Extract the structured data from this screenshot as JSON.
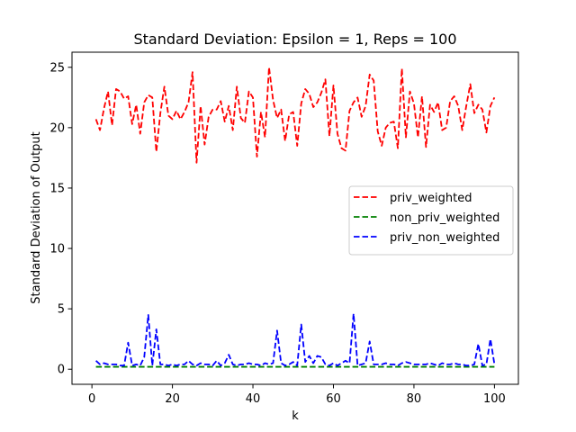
{
  "chart_data": {
    "type": "line",
    "title": "Standard Deviation: Epsilon = 1, Reps = 100",
    "xlabel": "k",
    "ylabel": "Standard Deviation of Output",
    "xlim": [
      -4.95,
      105.95
    ],
    "ylim": [
      -1.25,
      26.25
    ],
    "xticks": [
      0,
      20,
      40,
      60,
      80,
      100
    ],
    "yticks": [
      0,
      5,
      10,
      15,
      20,
      25
    ],
    "grid": false,
    "legend_position": "center-right",
    "x": [
      1,
      2,
      3,
      4,
      5,
      6,
      7,
      8,
      9,
      10,
      11,
      12,
      13,
      14,
      15,
      16,
      17,
      18,
      19,
      20,
      21,
      22,
      23,
      24,
      25,
      26,
      27,
      28,
      29,
      30,
      31,
      32,
      33,
      34,
      35,
      36,
      37,
      38,
      39,
      40,
      41,
      42,
      43,
      44,
      45,
      46,
      47,
      48,
      49,
      50,
      51,
      52,
      53,
      54,
      55,
      56,
      57,
      58,
      59,
      60,
      61,
      62,
      63,
      64,
      65,
      66,
      67,
      68,
      69,
      70,
      71,
      72,
      73,
      74,
      75,
      76,
      77,
      78,
      79,
      80,
      81,
      82,
      83,
      84,
      85,
      86,
      87,
      88,
      89,
      90,
      91,
      92,
      93,
      94,
      95,
      96,
      97,
      98,
      99,
      100
    ],
    "series": [
      {
        "name": "priv_weighted",
        "color": "#ff0000",
        "dash": "dashed",
        "values": [
          20.7,
          19.8,
          21.6,
          23.0,
          20.2,
          23.2,
          23.0,
          22.4,
          22.6,
          20.3,
          21.9,
          19.5,
          22.1,
          22.7,
          22.5,
          18.0,
          21.2,
          23.4,
          21.0,
          20.7,
          21.4,
          20.7,
          21.3,
          22.1,
          24.6,
          17.1,
          21.8,
          18.6,
          20.9,
          21.5,
          21.5,
          22.2,
          20.5,
          21.8,
          19.8,
          23.4,
          20.8,
          20.4,
          23.0,
          22.5,
          17.6,
          21.3,
          19.2,
          25.0,
          22.3,
          20.8,
          21.5,
          18.9,
          21.1,
          21.3,
          18.5,
          22.0,
          23.2,
          22.8,
          21.7,
          22.1,
          22.9,
          24.0,
          19.3,
          23.5,
          19.5,
          18.3,
          18.1,
          21.4,
          22.1,
          22.5,
          20.9,
          21.8,
          24.4,
          23.9,
          19.7,
          18.5,
          20.0,
          20.4,
          20.5,
          18.3,
          24.9,
          19.2,
          23.0,
          22.0,
          19.2,
          22.6,
          18.4,
          21.9,
          21.3,
          22.1,
          19.8,
          20.0,
          22.2,
          22.6,
          21.8,
          19.8,
          21.8,
          23.6,
          21.2,
          21.9,
          21.5,
          19.6,
          21.8,
          22.5
        ]
      },
      {
        "name": "non_priv_weighted",
        "color": "#008000",
        "dash": "dashed",
        "values": [
          0.2,
          0.2,
          0.2,
          0.2,
          0.2,
          0.2,
          0.2,
          0.2,
          0.2,
          0.2,
          0.2,
          0.2,
          0.2,
          0.2,
          0.2,
          0.2,
          0.2,
          0.2,
          0.2,
          0.2,
          0.2,
          0.2,
          0.2,
          0.2,
          0.2,
          0.2,
          0.2,
          0.2,
          0.2,
          0.2,
          0.2,
          0.2,
          0.2,
          0.2,
          0.2,
          0.2,
          0.2,
          0.2,
          0.2,
          0.2,
          0.2,
          0.2,
          0.2,
          0.2,
          0.2,
          0.2,
          0.2,
          0.2,
          0.2,
          0.2,
          0.2,
          0.2,
          0.2,
          0.2,
          0.2,
          0.2,
          0.2,
          0.2,
          0.2,
          0.2,
          0.2,
          0.2,
          0.2,
          0.2,
          0.2,
          0.2,
          0.2,
          0.2,
          0.2,
          0.2,
          0.2,
          0.2,
          0.2,
          0.2,
          0.2,
          0.2,
          0.2,
          0.2,
          0.2,
          0.2,
          0.2,
          0.2,
          0.2,
          0.2,
          0.2,
          0.2,
          0.2,
          0.2,
          0.2,
          0.2,
          0.2,
          0.2,
          0.2,
          0.2,
          0.2,
          0.2,
          0.2,
          0.2,
          0.2,
          0.2
        ]
      },
      {
        "name": "priv_non_weighted",
        "color": "#0000ff",
        "dash": "dashed",
        "values": [
          0.7,
          0.4,
          0.5,
          0.4,
          0.4,
          0.4,
          0.3,
          0.3,
          2.2,
          0.3,
          0.4,
          0.3,
          1.0,
          4.5,
          0.3,
          3.3,
          0.4,
          0.4,
          0.3,
          0.4,
          0.3,
          0.4,
          0.4,
          0.7,
          0.4,
          0.3,
          0.5,
          0.4,
          0.4,
          0.3,
          0.7,
          0.3,
          0.5,
          1.2,
          0.4,
          0.3,
          0.4,
          0.4,
          0.5,
          0.4,
          0.4,
          0.3,
          0.5,
          0.4,
          0.5,
          3.2,
          0.5,
          0.3,
          0.4,
          0.6,
          0.3,
          3.7,
          0.6,
          1.1,
          0.5,
          1.1,
          1.0,
          0.4,
          0.3,
          0.5,
          0.3,
          0.5,
          0.7,
          0.5,
          4.6,
          0.3,
          0.4,
          0.5,
          2.3,
          0.4,
          0.4,
          0.4,
          0.5,
          0.4,
          0.4,
          0.3,
          0.5,
          0.6,
          0.5,
          0.4,
          0.4,
          0.4,
          0.4,
          0.5,
          0.4,
          0.3,
          0.5,
          0.4,
          0.4,
          0.5,
          0.4,
          0.4,
          0.3,
          0.3,
          0.4,
          2.1,
          0.3,
          0.4,
          2.5,
          0.4
        ]
      }
    ]
  }
}
